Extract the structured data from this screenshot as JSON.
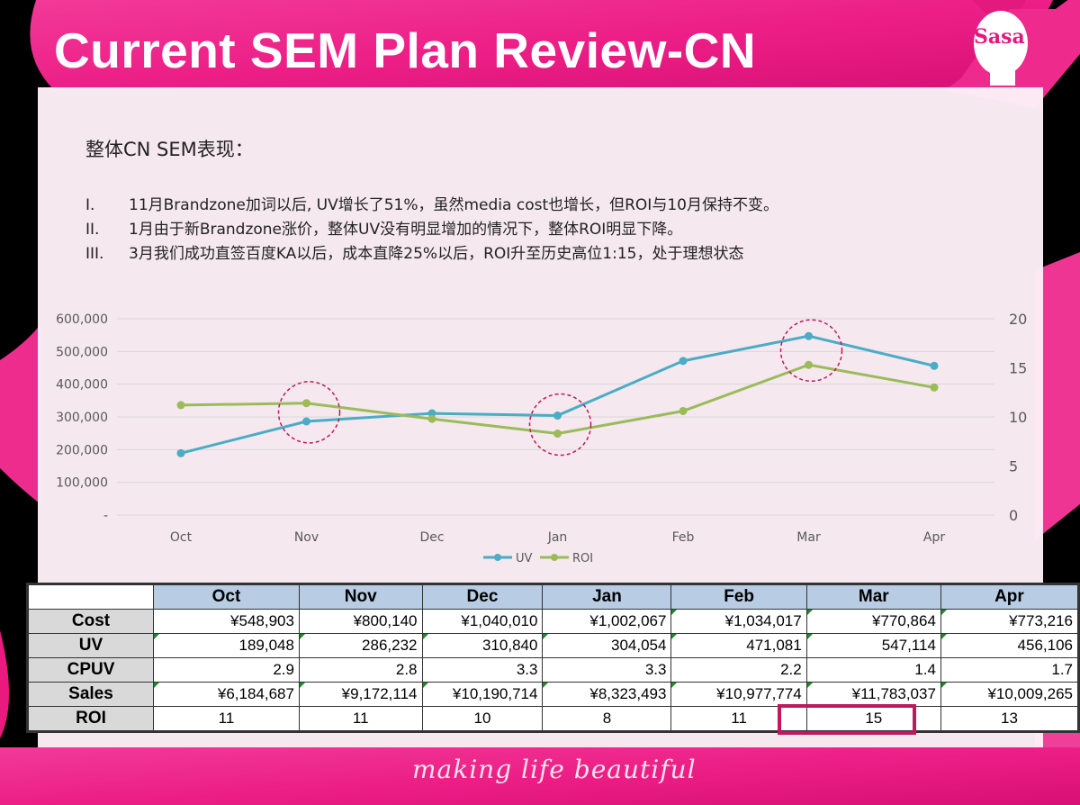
{
  "slide": {
    "title": "Current SEM Plan Review-CN",
    "logo_text": "Sasa",
    "tagline": "making life beautiful",
    "heading": "整体CN SEM表现：",
    "bullets": [
      {
        "num": "I.",
        "text": "11月Brandzone加词以后, UV增长了51%，虽然media cost也增长，但ROI与10月保持不变。"
      },
      {
        "num": "II.",
        "text": "1月由于新Brandzone涨价，整体UV没有明显增加的情况下，整体ROI明显下降。"
      },
      {
        "num": "III.",
        "text": "3月我们成功直签百度KA以后，成本直降25%以后，ROI升至历史高位1:15，处于理想状态"
      }
    ]
  },
  "colors": {
    "brand_pink": "#e4197d",
    "uv_line": "#4aacc5",
    "roi_line": "#9bbb59",
    "highlight": "#c0185e",
    "header_fill": "#b8cce4",
    "rowhead_fill": "#d9d9d9"
  },
  "chart_data": {
    "type": "line",
    "title": "",
    "categories": [
      "Oct",
      "Nov",
      "Dec",
      "Jan",
      "Feb",
      "Mar",
      "Apr"
    ],
    "series": [
      {
        "name": "UV",
        "axis": "left",
        "values": [
          189048,
          286232,
          310840,
          304054,
          471081,
          547114,
          456106
        ]
      },
      {
        "name": "ROI",
        "axis": "right",
        "values": [
          11.2,
          11.4,
          9.8,
          8.3,
          10.6,
          15.3,
          13.0
        ]
      }
    ],
    "left_axis": {
      "ylim": [
        0,
        600000
      ],
      "ticks": [
        "-",
        "100,000",
        "200,000",
        "300,000",
        "400,000",
        "500,000",
        "600,000"
      ]
    },
    "right_axis": {
      "ylim": [
        0,
        20
      ],
      "ticks": [
        "0",
        "5",
        "10",
        "15",
        "20"
      ]
    },
    "grid": true,
    "legend": {
      "position": "bottom",
      "entries": [
        "UV",
        "ROI"
      ]
    },
    "annotations": [
      {
        "type": "dashed-circle",
        "category": "Nov"
      },
      {
        "type": "dashed-circle",
        "category": "Jan"
      },
      {
        "type": "dashed-circle",
        "category": "Mar"
      }
    ]
  },
  "table": {
    "columns": [
      "Oct",
      "Nov",
      "Dec",
      "Jan",
      "Feb",
      "Mar",
      "Apr"
    ],
    "rows": [
      {
        "label": "Cost",
        "values": [
          "¥548,903",
          "¥800,140",
          "¥1,040,010",
          "¥1,002,067",
          "¥1,034,017",
          "¥770,864",
          "¥773,216"
        ]
      },
      {
        "label": "UV",
        "values": [
          "189,048",
          "286,232",
          "310,840",
          "304,054",
          "471,081",
          "547,114",
          "456,106"
        ]
      },
      {
        "label": "CPUV",
        "values": [
          "2.9",
          "2.8",
          "3.3",
          "3.3",
          "2.2",
          "1.4",
          "1.7"
        ]
      },
      {
        "label": "Sales",
        "values": [
          "¥6,184,687",
          "¥9,172,114",
          "¥10,190,714",
          "¥8,323,493",
          "¥10,977,774",
          "¥11,783,037",
          "¥10,009,265"
        ]
      },
      {
        "label": "ROI",
        "values": [
          "11",
          "11",
          "10",
          "8",
          "11",
          "15",
          "13"
        ]
      }
    ],
    "highlighted_cell": {
      "row": "ROI",
      "column": "Mar"
    }
  }
}
